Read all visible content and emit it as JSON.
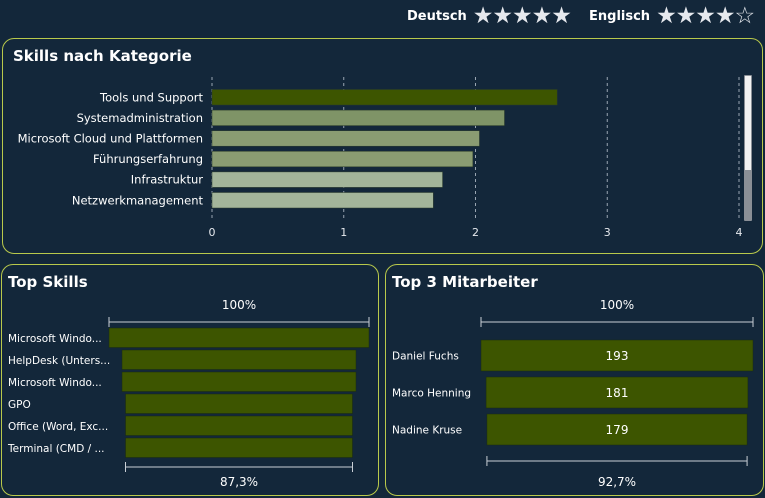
{
  "languages": [
    {
      "name": "Deutsch",
      "rating": 5,
      "max": 5
    },
    {
      "name": "Englisch",
      "rating": 4,
      "max": 5
    }
  ],
  "skills_panel": {
    "title": "Skills nach Kategorie"
  },
  "top_skills": {
    "title": "Top Skills",
    "top_label": "100%",
    "bottom_label": "87,3%"
  },
  "top_employees": {
    "title": "Top 3 Mitarbeiter",
    "top_label": "100%",
    "bottom_label": "92,7%"
  },
  "colors": {
    "background": "#13273a",
    "border": "#b9c94b",
    "bar_dark": "#3d5500",
    "bar_mid": "#7f9467",
    "bar_light": "#a3b59a"
  },
  "chart_data": [
    {
      "type": "bar",
      "orientation": "horizontal",
      "title": "Skills nach Kategorie",
      "categories": [
        "Tools und Support",
        "Systemadministration",
        "Microsoft Cloud und Plattformen",
        "Führungserfahrung",
        "Infrastruktur",
        "Netzwerkmanagement"
      ],
      "values": [
        2.62,
        2.22,
        2.03,
        1.98,
        1.75,
        1.68
      ],
      "colors": [
        "#3d5500",
        "#7f9467",
        "#8a9c72",
        "#8a9c72",
        "#a3b59a",
        "#a3b59a"
      ],
      "xlim": [
        0,
        4
      ],
      "xticks": [
        "0",
        "1",
        "2",
        "3",
        "4"
      ],
      "grid": true
    },
    {
      "type": "bar",
      "subtype": "funnel",
      "title": "Top Skills",
      "categories": [
        "Microsoft Windo...",
        "HelpDesk (Unters...",
        "Microsoft Windo...",
        "GPO",
        "Office (Word, Exc...",
        "Terminal (CMD / ..."
      ],
      "values": [
        100,
        90,
        90,
        87.3,
        87.3,
        87.3
      ],
      "unit": "%",
      "top_label": "100%",
      "bottom_label": "87,3%"
    },
    {
      "type": "bar",
      "subtype": "funnel",
      "title": "Top 3 Mitarbeiter",
      "categories": [
        "Daniel Fuchs",
        "Marco Henning",
        "Nadine Kruse"
      ],
      "values": [
        193,
        181,
        179
      ],
      "value_labels": [
        "193",
        "181",
        "179"
      ],
      "top_label": "100%",
      "bottom_label": "92,7%"
    }
  ]
}
